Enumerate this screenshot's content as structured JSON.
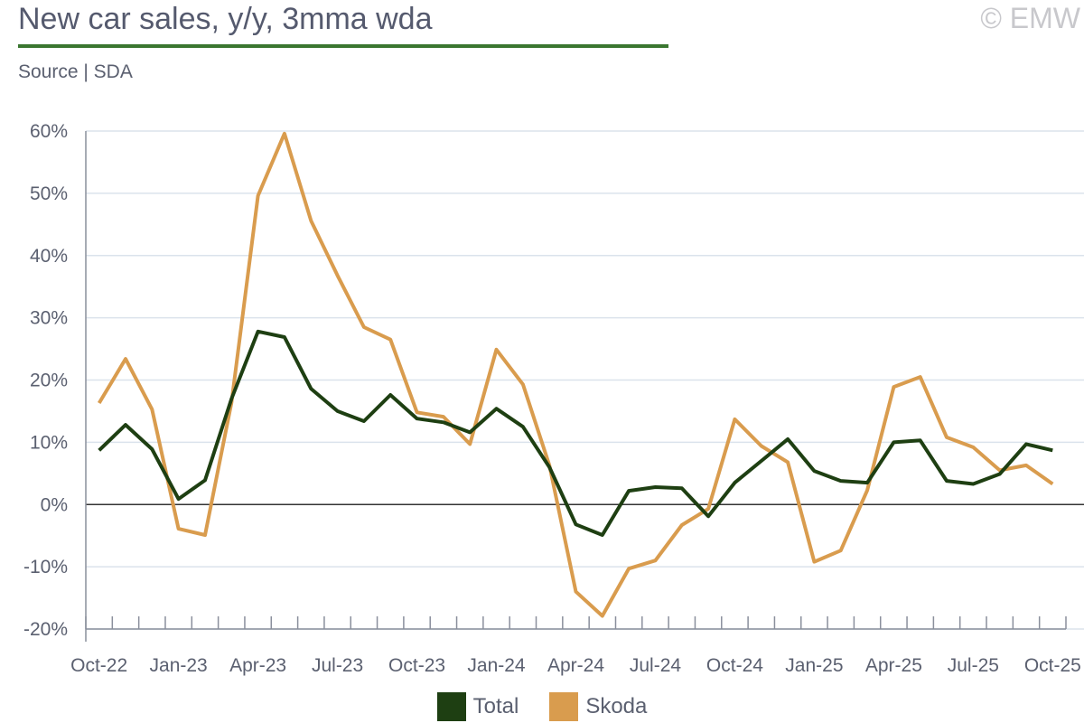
{
  "header": {
    "title": "New car sales, y/y, 3mma wda",
    "source": "Source | SDA",
    "copyright": "© EMW"
  },
  "chart_data": {
    "type": "line",
    "title": "New car sales, y/y, 3mma wda",
    "xlabel": "",
    "ylabel": "",
    "ylim": [
      -20,
      60
    ],
    "yticks": [
      -20,
      -10,
      0,
      10,
      20,
      30,
      40,
      50,
      60
    ],
    "ytick_labels": [
      "-20%",
      "-10%",
      "0%",
      "10%",
      "20%",
      "30%",
      "40%",
      "50%",
      "60%"
    ],
    "x": [
      "Oct-22",
      "Nov-22",
      "Dec-22",
      "Jan-23",
      "Feb-23",
      "Mar-23",
      "Apr-23",
      "May-23",
      "Jun-23",
      "Jul-23",
      "Aug-23",
      "Sep-23",
      "Oct-23",
      "Nov-23",
      "Dec-23",
      "Jan-24",
      "Feb-24",
      "Mar-24",
      "Apr-24",
      "May-24",
      "Jun-24",
      "Jul-24",
      "Aug-24",
      "Sep-24",
      "Oct-24",
      "Nov-24",
      "Dec-24",
      "Jan-25",
      "Feb-25",
      "Mar-25",
      "Apr-25",
      "May-25",
      "Jun-25",
      "Jul-25",
      "Aug-25",
      "Sep-25",
      "Oct-25"
    ],
    "xtick_labels": [
      "Oct-22",
      "Jan-23",
      "Apr-23",
      "Jul-23",
      "Oct-23",
      "Jan-24",
      "Apr-24",
      "Jul-24",
      "Oct-24",
      "Jan-25",
      "Apr-25",
      "Jul-25",
      "Oct-25"
    ],
    "grid": true,
    "legend": "bottom-center",
    "series": [
      {
        "name": "Total",
        "color": "#1e3f12",
        "values": [
          8.7,
          12.8,
          8.9,
          0.9,
          3.9,
          17,
          27.8,
          26.9,
          18.6,
          15,
          13.4,
          17.6,
          13.8,
          13.2,
          11.6,
          15.4,
          12.5,
          6,
          -3.2,
          -4.9,
          2.2,
          2.8,
          2.6,
          -1.9,
          3.5,
          7,
          10.5,
          5.4,
          3.8,
          3.5,
          10,
          10.3,
          3.8,
          3.3,
          4.9,
          9.7,
          8.7
        ]
      },
      {
        "name": "Skoda",
        "color": "#d99c4e",
        "values": [
          16.3,
          23.4,
          15.3,
          -3.9,
          -4.9,
          16.4,
          49.6,
          59.6,
          45.6,
          36.8,
          28.5,
          26.5,
          14.8,
          14.1,
          9.7,
          24.9,
          19.3,
          6.3,
          -14,
          -17.9,
          -10.3,
          -9,
          -3.3,
          -0.7,
          13.7,
          9.4,
          6.8,
          -9.2,
          -7.4,
          2.3,
          18.9,
          20.5,
          10.8,
          9.2,
          5.5,
          6.3,
          3.3
        ]
      }
    ]
  }
}
